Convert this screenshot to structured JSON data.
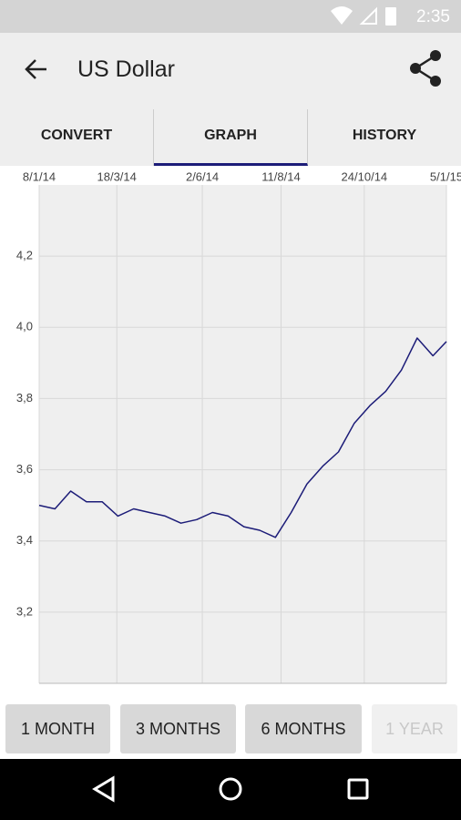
{
  "status_bar": {
    "time": "2:35"
  },
  "app_bar": {
    "title": "US Dollar"
  },
  "tabs": [
    "CONVERT",
    "GRAPH",
    "HISTORY"
  ],
  "chart_data": {
    "type": "line",
    "color": "#1c1c78",
    "grid": true,
    "x": [
      "2014-01-08",
      "2014-01-22",
      "2014-02-05",
      "2014-02-19",
      "2014-03-05",
      "2014-03-19",
      "2014-04-02",
      "2014-04-16",
      "2014-04-30",
      "2014-05-14",
      "2014-05-28",
      "2014-06-11",
      "2014-06-25",
      "2014-07-09",
      "2014-07-23",
      "2014-08-06",
      "2014-08-20",
      "2014-09-03",
      "2014-09-17",
      "2014-10-01",
      "2014-10-15",
      "2014-10-29",
      "2014-11-12",
      "2014-11-26",
      "2014-12-10",
      "2014-12-24",
      "2015-01-05"
    ],
    "values": [
      3.5,
      3.49,
      3.54,
      3.51,
      3.51,
      3.47,
      3.49,
      3.48,
      3.47,
      3.45,
      3.46,
      3.48,
      3.47,
      3.44,
      3.43,
      3.41,
      3.48,
      3.56,
      3.61,
      3.65,
      3.73,
      3.78,
      3.82,
      3.88,
      3.97,
      3.92,
      3.96
    ],
    "xlim": [
      "2014-01-08",
      "2015-01-05"
    ],
    "xticks": [
      {
        "value": "2014-01-08",
        "label": "8/1/14"
      },
      {
        "value": "2014-03-18",
        "label": "18/3/14"
      },
      {
        "value": "2014-06-02",
        "label": "2/6/14"
      },
      {
        "value": "2014-08-11",
        "label": "11/8/14"
      },
      {
        "value": "2014-10-24",
        "label": "24/10/14"
      },
      {
        "value": "2015-01-05",
        "label": "5/1/15"
      }
    ],
    "ylim": [
      3.0,
      4.4
    ],
    "yticks": [
      {
        "value": 3.2,
        "label": "3,2"
      },
      {
        "value": 3.4,
        "label": "3,4"
      },
      {
        "value": 3.6,
        "label": "3,6"
      },
      {
        "value": 3.8,
        "label": "3,8"
      },
      {
        "value": 4.0,
        "label": "4,0"
      },
      {
        "value": 4.2,
        "label": "4,2"
      }
    ]
  },
  "range_buttons": [
    "1 MONTH",
    "3 MONTHS",
    "6 MONTHS",
    "1 YEAR"
  ]
}
